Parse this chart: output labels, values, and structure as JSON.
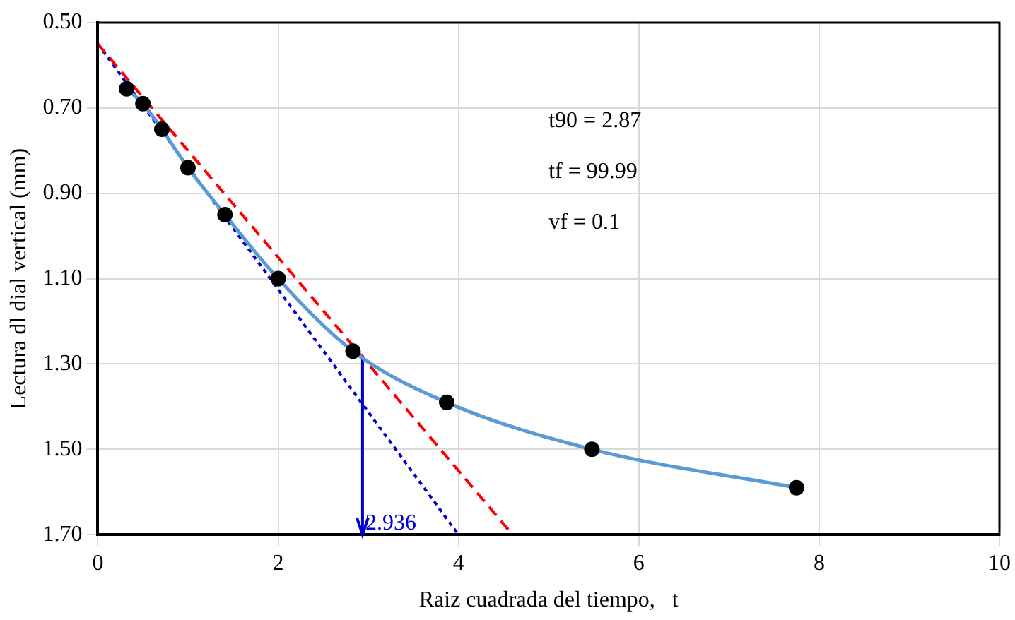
{
  "chart_data": {
    "type": "scatter",
    "xlabel": "Raiz cuadrada del tiempo,   t",
    "ylabel": "Lectura dl dial vertical (mm)",
    "xlim": [
      0,
      10
    ],
    "xticks": [
      0,
      2,
      4,
      6,
      8,
      10
    ],
    "ylim": [
      1.7,
      0.5
    ],
    "yticks": [
      {
        "value": 0.5,
        "label": "0.50"
      },
      {
        "value": 0.7,
        "label": "0.70"
      },
      {
        "value": 0.9,
        "label": "0.90"
      },
      {
        "value": 1.1,
        "label": "1.10"
      },
      {
        "value": 1.3,
        "label": "1.30"
      },
      {
        "value": 1.5,
        "label": "1.50"
      },
      {
        "value": 1.7,
        "label": "1.70"
      }
    ],
    "grid": true,
    "legend": false,
    "series": [
      {
        "type": "line",
        "color": "#5b9bd5",
        "marker": "none",
        "line_style": "solid",
        "x": [
          0.32,
          0.5,
          0.71,
          1,
          1.41,
          2,
          2.83,
          3.87,
          5.48,
          7.75
        ],
        "values": [
          0.655,
          0.69,
          0.75,
          0.84,
          0.95,
          1.1,
          1.27,
          1.39,
          1.5,
          1.59
        ]
      },
      {
        "type": "line",
        "color": "#ff0000",
        "marker": "none",
        "line_style": "dashed",
        "x": [
          0,
          4.6
        ],
        "values": [
          0.55,
          1.7
        ]
      },
      {
        "type": "line",
        "color": "#0000cc",
        "marker": "none",
        "line_style": "dotted",
        "x": [
          0,
          4.0
        ],
        "values": [
          0.55,
          1.7
        ]
      },
      {
        "type": "line",
        "color": "#0000cc",
        "marker": "none",
        "line_style": "solid",
        "x": [
          2.936,
          2.936
        ],
        "values": [
          1.28,
          1.7
        ]
      },
      {
        "color": "#000000",
        "marker": "circle",
        "x": [
          0.32,
          0.5,
          0.71,
          1,
          1.41,
          2,
          2.83,
          3.87,
          5.48,
          7.75
        ],
        "values": [
          0.655,
          0.69,
          0.75,
          0.84,
          0.95,
          1.1,
          1.27,
          1.39,
          1.5,
          1.59
        ]
      }
    ],
    "annotations": [
      {
        "text": "2.936",
        "x": 2.936,
        "y": 1.7
      },
      "t90 = 2.87",
      "tf = 99.99",
      "vf = 0.1"
    ]
  }
}
